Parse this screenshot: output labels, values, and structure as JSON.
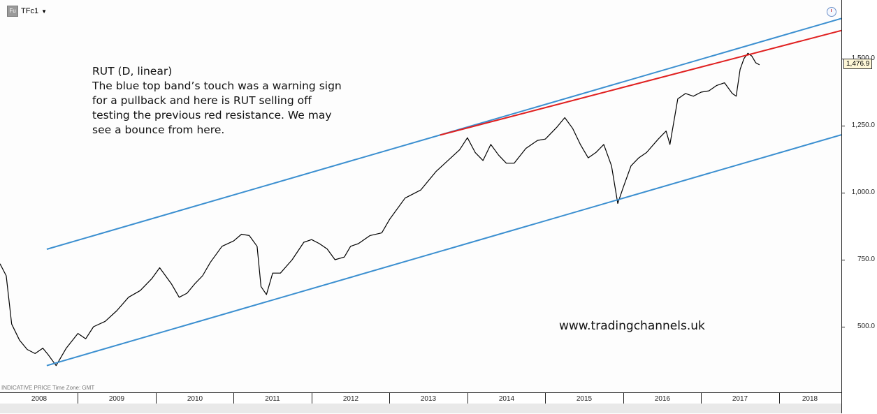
{
  "header": {
    "badge": "Fu",
    "symbol": "TFc1",
    "caret": "▼"
  },
  "annotation": {
    "lines": [
      "RUT (D, linear)",
      "The blue top band’s touch was a warning sign",
      "for a pullback and here is RUT selling off",
      "testing the previous red resistance. We may",
      "see a bounce from here."
    ]
  },
  "watermark": "www.tradingchannels.uk",
  "footer_note": "INDICATIVE PRICE   Time Zone: GMT",
  "last_price_label": "1,476.9",
  "icons": {
    "clock": "clock-icon",
    "menu": "caret-down-icon"
  },
  "colors": {
    "channel": "#3b8fd0",
    "resistance": "#e02020",
    "price": "#000000"
  },
  "chart_data": {
    "type": "line",
    "title": "",
    "xlabel": "",
    "ylabel": "",
    "ylim": [
      300,
      1680
    ],
    "xlim": [
      2008.0,
      2018.8
    ],
    "yticks": [
      {
        "value": 500,
        "label": "500.0"
      },
      {
        "value": 750,
        "label": "750.0"
      },
      {
        "value": 1000,
        "label": "1,000.0"
      },
      {
        "value": 1250,
        "label": "1,250.0"
      },
      {
        "value": 1500,
        "label": "1,500.0"
      }
    ],
    "xticks": [
      {
        "year": 2008,
        "label": "2008"
      },
      {
        "year": 2009,
        "label": "2009"
      },
      {
        "year": 2010,
        "label": "2010"
      },
      {
        "year": 2011,
        "label": "2011"
      },
      {
        "year": 2012,
        "label": "2012"
      },
      {
        "year": 2013,
        "label": "2013"
      },
      {
        "year": 2014,
        "label": "2014"
      },
      {
        "year": 2015,
        "label": "2015"
      },
      {
        "year": 2016,
        "label": "2016"
      },
      {
        "year": 2017,
        "label": "2017"
      },
      {
        "year": 2018,
        "label": "2018"
      }
    ],
    "series": [
      {
        "style": "price",
        "x": [
          2008.0,
          2008.08,
          2008.15,
          2008.25,
          2008.35,
          2008.45,
          2008.55,
          2008.62,
          2008.72,
          2008.85,
          2009.0,
          2009.1,
          2009.2,
          2009.35,
          2009.5,
          2009.65,
          2009.8,
          2009.95,
          2010.05,
          2010.2,
          2010.3,
          2010.4,
          2010.5,
          2010.6,
          2010.7,
          2010.85,
          2011.0,
          2011.1,
          2011.2,
          2011.3,
          2011.35,
          2011.42,
          2011.5,
          2011.6,
          2011.75,
          2011.9,
          2012.0,
          2012.1,
          2012.2,
          2012.3,
          2012.42,
          2012.5,
          2012.6,
          2012.75,
          2012.9,
          2013.0,
          2013.2,
          2013.4,
          2013.6,
          2013.75,
          2013.9,
          2014.0,
          2014.1,
          2014.2,
          2014.3,
          2014.4,
          2014.5,
          2014.6,
          2014.75,
          2014.9,
          2015.0,
          2015.15,
          2015.25,
          2015.35,
          2015.45,
          2015.55,
          2015.65,
          2015.75,
          2015.85,
          2015.93,
          2016.0,
          2016.1,
          2016.2,
          2016.3,
          2016.45,
          2016.55,
          2016.6,
          2016.7,
          2016.8,
          2016.9,
          2017.0,
          2017.1,
          2017.2,
          2017.3,
          2017.4,
          2017.45,
          2017.5,
          2017.55,
          2017.6,
          2017.65,
          2017.7,
          2017.75
        ],
        "values": [
          735,
          690,
          510,
          450,
          415,
          400,
          420,
          395,
          355,
          420,
          475,
          455,
          500,
          520,
          560,
          610,
          635,
          680,
          720,
          660,
          610,
          625,
          660,
          690,
          740,
          800,
          820,
          845,
          840,
          800,
          650,
          620,
          700,
          700,
          750,
          815,
          825,
          810,
          790,
          750,
          760,
          800,
          810,
          840,
          850,
          900,
          980,
          1010,
          1080,
          1120,
          1160,
          1205,
          1150,
          1120,
          1180,
          1140,
          1110,
          1110,
          1165,
          1195,
          1200,
          1245,
          1280,
          1240,
          1180,
          1130,
          1150,
          1180,
          1100,
          960,
          1020,
          1100,
          1130,
          1150,
          1200,
          1230,
          1180,
          1350,
          1370,
          1360,
          1375,
          1380,
          1400,
          1410,
          1370,
          1360,
          1460,
          1500,
          1520,
          1510,
          1485,
          1476.9
        ]
      },
      {
        "style": "channel",
        "x": [
          2008.6,
          2018.8
        ],
        "values": [
          789,
          1650
        ]
      },
      {
        "style": "channel",
        "x": [
          2008.6,
          2018.8
        ],
        "values": [
          355,
          1216
        ]
      },
      {
        "style": "resistance",
        "x": [
          2013.65,
          2018.8
        ],
        "values": [
          1215,
          1605
        ]
      }
    ]
  }
}
